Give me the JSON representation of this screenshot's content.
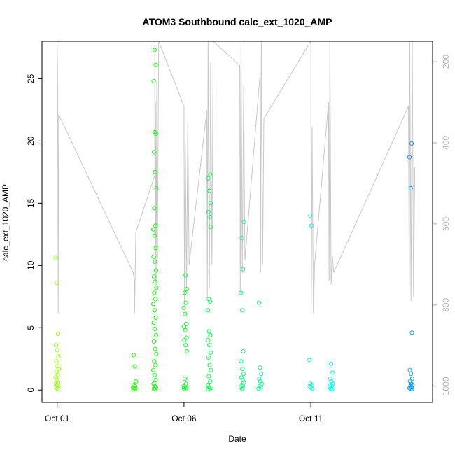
{
  "chart_data": {
    "type": "scatter",
    "title": "ATOM3 Southbound calc_ext_1020_AMP",
    "xlabel": "Date",
    "ylabel": "calc_ext_1020_AMP",
    "x_tick_labels": [
      "Oct 01",
      "Oct 06",
      "Oct 11"
    ],
    "x_ticks_day": [
      1,
      6,
      11
    ],
    "xlim_day": [
      0.4,
      15.8
    ],
    "ylim": [
      -1.0,
      28.0
    ],
    "y_ticks": [
      0,
      5,
      10,
      15,
      20,
      25
    ],
    "y2_ticks": [
      200,
      400,
      600,
      800,
      1000
    ],
    "y2lim": [
      1040,
      150
    ],
    "grid": false,
    "series": [
      {
        "kind": "points",
        "marker": "open-circle",
        "color_scale": "day-rainbow",
        "clusters": [
          {
            "day": 1.0,
            "values": [
              10.6,
              8.6,
              4.5,
              3.6,
              3.2,
              2.7,
              2.3,
              1.9,
              1.7,
              1.5,
              1.2,
              1.0,
              0.8,
              0.6,
              0.5,
              0.4,
              0.3,
              0.2,
              0.1
            ]
          },
          {
            "day": 4.05,
            "values": [
              2.8,
              1.9,
              0.7,
              0.4,
              0.3,
              0.2,
              0.15,
              0.1,
              0.05
            ]
          },
          {
            "day": 4.85,
            "values": [
              27.3,
              26.1,
              24.8,
              20.7,
              20.6,
              19.1,
              17.5,
              16.2,
              14.6,
              13.2,
              12.9,
              12.4,
              11.4,
              10.7,
              10.3,
              9.6,
              9.1,
              8.7,
              8.2,
              7.8,
              7.3,
              6.9,
              6.4,
              5.8,
              5.4,
              4.9,
              4.4,
              3.9,
              3.3,
              2.9,
              2.3,
              2.0,
              1.6,
              1.2,
              0.8,
              0.5,
              0.3,
              0.2,
              0.1,
              0.05
            ]
          },
          {
            "day": 6.05,
            "values": [
              9.2,
              8.1,
              7.8,
              7.0,
              6.6,
              6.1,
              5.3,
              5.1,
              4.8,
              4.2,
              4.0,
              3.6,
              3.1,
              0.9,
              0.5,
              0.3,
              0.2,
              0.15,
              0.1
            ]
          },
          {
            "day": 7.0,
            "values": [
              17.3,
              17.0,
              16.0,
              15.0,
              14.3,
              13.9,
              13.1,
              7.3,
              7.1,
              6.4,
              4.7,
              4.4,
              4.0,
              3.6,
              3.0,
              2.6,
              2.0,
              1.6,
              1.1,
              0.7,
              0.4,
              0.2,
              0.1,
              0.05
            ]
          },
          {
            "day": 8.3,
            "values": [
              13.5,
              12.2,
              9.7,
              7.8,
              6.4,
              3.1,
              2.3,
              1.7,
              1.3,
              1.0,
              0.8,
              0.6,
              0.4,
              0.3,
              0.2,
              0.1
            ]
          },
          {
            "day": 9.0,
            "values": [
              7.0,
              1.8,
              1.3,
              0.9,
              0.7,
              0.5,
              0.3,
              0.2,
              0.1
            ]
          },
          {
            "day": 11.0,
            "values": [
              14.0,
              13.2,
              2.4,
              0.5,
              0.4,
              0.3,
              0.2,
              0.1
            ]
          },
          {
            "day": 11.8,
            "values": [
              2.1,
              1.4,
              0.9,
              0.7,
              0.5,
              0.4,
              0.3,
              0.2,
              0.1,
              0.05
            ]
          },
          {
            "day": 14.95,
            "values": [
              19.8,
              18.7,
              16.2,
              4.6,
              1.6,
              1.3,
              0.9,
              0.7,
              0.5,
              0.4,
              0.3,
              0.2,
              0.15,
              0.1,
              0.05
            ]
          }
        ]
      },
      {
        "kind": "line",
        "axis": "right",
        "color": "#c8c8c8",
        "points": [
          [
            1.0,
            150
          ],
          [
            1.02,
            270
          ],
          [
            1.04,
            820
          ],
          [
            1.06,
            330
          ],
          [
            4.0,
            720
          ],
          [
            4.05,
            740
          ],
          [
            4.05,
            820
          ],
          [
            4.1,
            620
          ],
          [
            4.85,
            480
          ],
          [
            4.85,
            150
          ],
          [
            4.86,
            780
          ],
          [
            4.88,
            300
          ],
          [
            4.9,
            760
          ],
          [
            4.93,
            250
          ],
          [
            4.95,
            700
          ],
          [
            5.0,
            150
          ],
          [
            6.0,
            310
          ],
          [
            6.02,
            800
          ],
          [
            6.05,
            400
          ],
          [
            6.1,
            760
          ],
          [
            6.15,
            350
          ],
          [
            6.2,
            700
          ],
          [
            6.9,
            320
          ],
          [
            6.92,
            780
          ],
          [
            6.95,
            150
          ],
          [
            7.0,
            760
          ],
          [
            7.05,
            200
          ],
          [
            7.1,
            700
          ],
          [
            7.15,
            150
          ],
          [
            8.2,
            210
          ],
          [
            8.22,
            770
          ],
          [
            8.25,
            150
          ],
          [
            8.3,
            720
          ],
          [
            8.35,
            260
          ],
          [
            8.4,
            690
          ],
          [
            9.0,
            230
          ],
          [
            9.02,
            720
          ],
          [
            9.05,
            150
          ],
          [
            9.1,
            700
          ],
          [
            9.15,
            340
          ],
          [
            11.0,
            150
          ],
          [
            11.02,
            800
          ],
          [
            11.05,
            360
          ],
          [
            11.1,
            820
          ],
          [
            11.15,
            700
          ],
          [
            11.7,
            300
          ],
          [
            11.72,
            740
          ],
          [
            11.75,
            150
          ],
          [
            11.8,
            750
          ],
          [
            11.85,
            680
          ],
          [
            11.9,
            720
          ],
          [
            14.85,
            310
          ],
          [
            14.88,
            750
          ],
          [
            14.9,
            150
          ],
          [
            14.95,
            790
          ],
          [
            15.0,
            150
          ],
          [
            15.05,
            780
          ],
          [
            15.1,
            460
          ]
        ]
      }
    ]
  }
}
